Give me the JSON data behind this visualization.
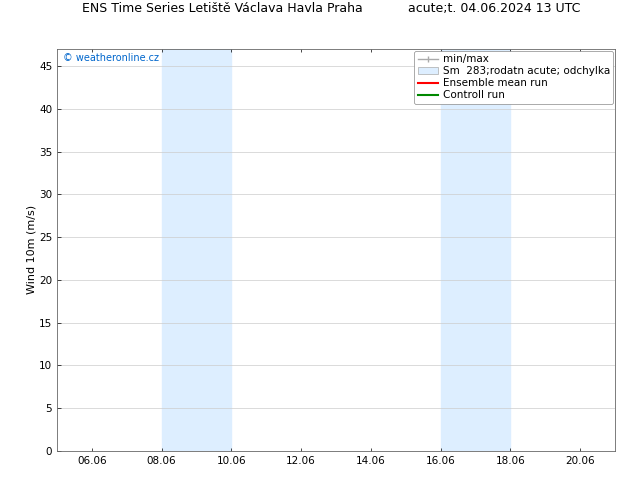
{
  "title_left": "ENS Time Series Letiště Václava Havla Praha",
  "title_right": "acute;t. 04.06.2024 13 UTC",
  "ylabel": "Wind 10m (m/s)",
  "watermark": "© weatheronline.cz",
  "watermark_color": "#0066cc",
  "ymin": 0,
  "ymax": 47,
  "yticks": [
    0,
    5,
    10,
    15,
    20,
    25,
    30,
    35,
    40,
    45
  ],
  "xtick_labels": [
    "06.06",
    "08.06",
    "10.06",
    "12.06",
    "14.06",
    "16.06",
    "18.06",
    "20.06"
  ],
  "xtick_dates": [
    "2024-06-06 00:00",
    "2024-06-08 00:00",
    "2024-06-10 00:00",
    "2024-06-12 00:00",
    "2024-06-14 00:00",
    "2024-06-16 00:00",
    "2024-06-18 00:00",
    "2024-06-20 00:00"
  ],
  "shade_bands": [
    [
      "2024-06-08 00:00",
      "2024-06-10 00:00"
    ],
    [
      "2024-06-16 00:00",
      "2024-06-18 00:00"
    ]
  ],
  "shade_color": "#ddeeff",
  "background_color": "#ffffff",
  "plot_bg_color": "#ffffff",
  "grid_color": "#cccccc",
  "legend_label_minmax": "min/max",
  "legend_label_spread": "Sm  283;rodatn acute; odchylka",
  "legend_label_mean": "Ensemble mean run",
  "legend_label_ctrl": "Controll run",
  "legend_minmax_color": "#aaaaaa",
  "legend_spread_color": "#ddeeff",
  "legend_mean_color": "#ff0000",
  "legend_ctrl_color": "#008800",
  "title_fontsize": 9,
  "tick_fontsize": 7.5,
  "ylabel_fontsize": 8,
  "legend_fontsize": 7.5,
  "watermark_fontsize": 7,
  "figsize": [
    6.34,
    4.9
  ],
  "dpi": 100
}
